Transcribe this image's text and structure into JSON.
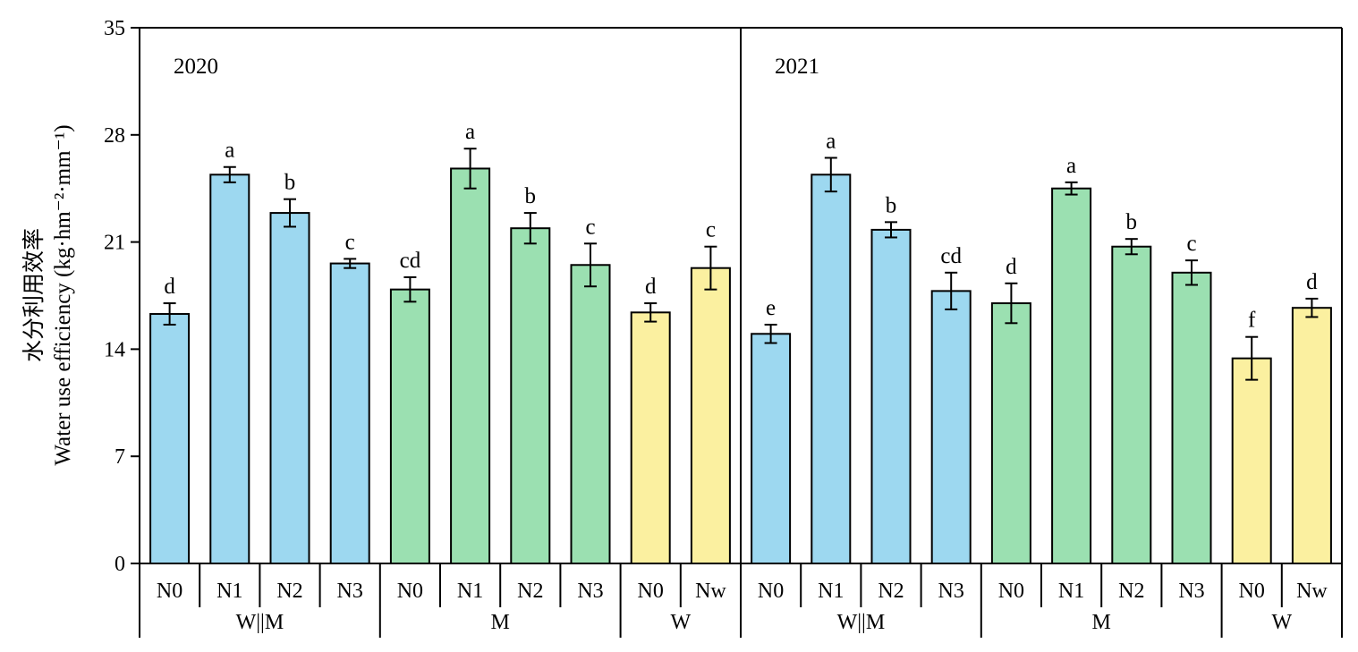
{
  "chart_data": {
    "type": "bar",
    "ylabel_cn": "水分利用效率",
    "ylabel": "Water use efficiency (kg·hm⁻²·mm⁻¹)",
    "ylim": [
      0,
      35
    ],
    "yticks": [
      "0",
      "7",
      "14",
      "21",
      "28",
      "35"
    ],
    "grid": false,
    "colors": {
      "W||M": "#9dd8f0",
      "M": "#9be0b1",
      "W": "#fbf0a0"
    },
    "panels": [
      {
        "year": "2020",
        "groups": [
          {
            "name": "W||M",
            "color_key": "W||M",
            "bars": [
              {
                "label": "N0",
                "value": 16.3,
                "error": 0.7,
                "sig": "d"
              },
              {
                "label": "N1",
                "value": 25.4,
                "error": 0.5,
                "sig": "a"
              },
              {
                "label": "N2",
                "value": 22.9,
                "error": 0.9,
                "sig": "b"
              },
              {
                "label": "N3",
                "value": 19.6,
                "error": 0.3,
                "sig": "c"
              }
            ]
          },
          {
            "name": "M",
            "color_key": "M",
            "bars": [
              {
                "label": "N0",
                "value": 17.9,
                "error": 0.8,
                "sig": "cd"
              },
              {
                "label": "N1",
                "value": 25.8,
                "error": 1.3,
                "sig": "a"
              },
              {
                "label": "N2",
                "value": 21.9,
                "error": 1.0,
                "sig": "b"
              },
              {
                "label": "N3",
                "value": 19.5,
                "error": 1.4,
                "sig": "c"
              }
            ]
          },
          {
            "name": "W",
            "color_key": "W",
            "bars": [
              {
                "label": "N0",
                "value": 16.4,
                "error": 0.6,
                "sig": "d"
              },
              {
                "label": "Nw",
                "value": 19.3,
                "error": 1.4,
                "sig": "c"
              }
            ]
          }
        ]
      },
      {
        "year": "2021",
        "groups": [
          {
            "name": "W||M",
            "color_key": "W||M",
            "bars": [
              {
                "label": "N0",
                "value": 15.0,
                "error": 0.6,
                "sig": "e"
              },
              {
                "label": "N1",
                "value": 25.4,
                "error": 1.1,
                "sig": "a"
              },
              {
                "label": "N2",
                "value": 21.8,
                "error": 0.5,
                "sig": "b"
              },
              {
                "label": "N3",
                "value": 17.8,
                "error": 1.2,
                "sig": "cd"
              }
            ]
          },
          {
            "name": "M",
            "color_key": "M",
            "bars": [
              {
                "label": "N0",
                "value": 17.0,
                "error": 1.3,
                "sig": "d"
              },
              {
                "label": "N1",
                "value": 24.5,
                "error": 0.4,
                "sig": "a"
              },
              {
                "label": "N2",
                "value": 20.7,
                "error": 0.5,
                "sig": "b"
              },
              {
                "label": "N3",
                "value": 19.0,
                "error": 0.8,
                "sig": "c"
              }
            ]
          },
          {
            "name": "W",
            "color_key": "W",
            "bars": [
              {
                "label": "N0",
                "value": 13.4,
                "error": 1.4,
                "sig": "f"
              },
              {
                "label": "Nw",
                "value": 16.7,
                "error": 0.6,
                "sig": "d"
              }
            ]
          }
        ]
      }
    ]
  }
}
